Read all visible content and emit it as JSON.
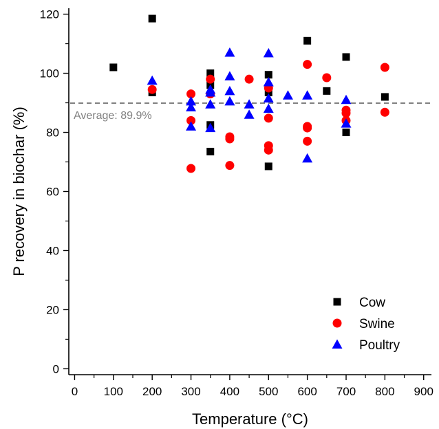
{
  "chart_data": {
    "type": "scatter",
    "xlabel": "Temperature (°C)",
    "ylabel": "P recovery in biochar (%)",
    "xlim": [
      -15,
      920
    ],
    "ylim": [
      -2,
      122
    ],
    "x_ticks": [
      0,
      100,
      200,
      300,
      400,
      500,
      600,
      700,
      800,
      900
    ],
    "y_ticks": [
      0,
      20,
      40,
      60,
      80,
      100,
      120
    ],
    "grid": false,
    "legend_position": "bottom-right",
    "reference_line": {
      "y": 89.9,
      "label": "Average: 89.9%",
      "color": "#808080",
      "style": "dashed"
    },
    "series": [
      {
        "name": "Cow",
        "marker": "square",
        "color": "#000000",
        "points": [
          [
            100,
            102
          ],
          [
            200,
            118.5
          ],
          [
            200,
            93.5
          ],
          [
            350,
            100
          ],
          [
            350,
            96
          ],
          [
            350,
            82.5
          ],
          [
            350,
            73.5
          ],
          [
            500,
            99.5
          ],
          [
            500,
            93.5
          ],
          [
            500,
            68.5
          ],
          [
            600,
            111
          ],
          [
            650,
            94
          ],
          [
            700,
            105.5
          ],
          [
            700,
            80
          ],
          [
            800,
            92
          ]
        ]
      },
      {
        "name": "Swine",
        "marker": "circle",
        "color": "#ff0000",
        "points": [
          [
            200,
            94.5
          ],
          [
            300,
            93
          ],
          [
            300,
            84
          ],
          [
            300,
            67.8
          ],
          [
            350,
            98
          ],
          [
            350,
            93
          ],
          [
            400,
            78.5
          ],
          [
            400,
            77.8
          ],
          [
            400,
            68.8
          ],
          [
            450,
            98
          ],
          [
            500,
            95
          ],
          [
            500,
            84.8
          ],
          [
            500,
            75.5
          ],
          [
            500,
            74
          ],
          [
            600,
            103
          ],
          [
            600,
            82
          ],
          [
            600,
            81.5
          ],
          [
            600,
            77
          ],
          [
            650,
            98.5
          ],
          [
            700,
            87.5
          ],
          [
            700,
            86.5
          ],
          [
            700,
            84
          ],
          [
            800,
            102
          ],
          [
            800,
            86.8
          ]
        ]
      },
      {
        "name": "Poultry",
        "marker": "triangle",
        "color": "#0000ff",
        "points": [
          [
            200,
            97.5
          ],
          [
            300,
            90.5
          ],
          [
            300,
            88.5
          ],
          [
            300,
            82
          ],
          [
            350,
            94.5
          ],
          [
            350,
            93.5
          ],
          [
            350,
            89.5
          ],
          [
            350,
            81.5
          ],
          [
            400,
            107
          ],
          [
            400,
            99
          ],
          [
            400,
            94
          ],
          [
            400,
            90.5
          ],
          [
            450,
            89.5
          ],
          [
            450,
            86
          ],
          [
            500,
            106.8
          ],
          [
            500,
            97
          ],
          [
            500,
            91.5
          ],
          [
            500,
            88
          ],
          [
            550,
            92.5
          ],
          [
            600,
            92.5
          ],
          [
            600,
            71.2
          ],
          [
            700,
            91
          ],
          [
            700,
            83
          ]
        ]
      }
    ]
  }
}
